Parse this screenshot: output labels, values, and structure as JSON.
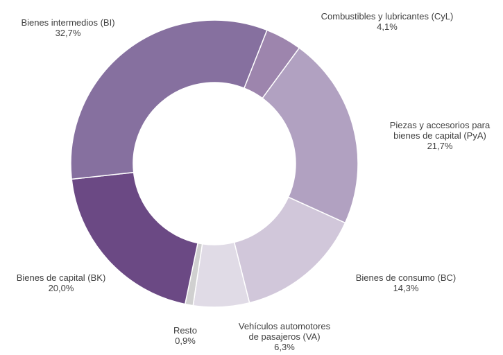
{
  "chart_data": {
    "type": "pie",
    "donut": true,
    "legend": "none",
    "slices": [
      {
        "name": "Combustibles y lubricantes (CyL)",
        "value": 4.1,
        "value_label": "4,1%",
        "color": "#9d85ad"
      },
      {
        "name": "Piezas y accesorios para bienes de capital (PyA)",
        "value": 21.7,
        "value_label": "21,7%",
        "color": "#b1a1c1"
      },
      {
        "name": "Bienes de consumo (BC)",
        "value": 14.3,
        "value_label": "14,3%",
        "color": "#d1c7da"
      },
      {
        "name": "Vehículos automotores de pasajeros (VA)",
        "value": 6.3,
        "value_label": "6,3%",
        "color": "#e0dbe6"
      },
      {
        "name": "Resto",
        "value": 0.9,
        "value_label": "0,9%",
        "color": "#d0d0d0"
      },
      {
        "name": "Bienes de capital (BK)",
        "value": 20.0,
        "value_label": "20,0%",
        "color": "#6b4984"
      },
      {
        "name": "Bienes intermedios (BI)",
        "value": 32.7,
        "value_label": "32,7%",
        "color": "#86709f"
      }
    ]
  }
}
